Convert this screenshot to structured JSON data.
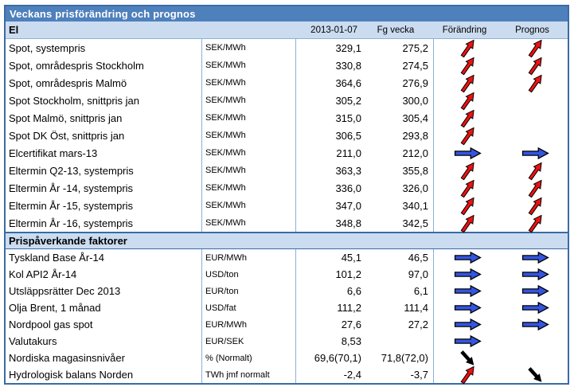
{
  "title": "Veckans prisförändring och prognos",
  "colors": {
    "title_bg": "#4E80BC",
    "section_bg": "#CBDCF0",
    "border_strong": "#3A6BA5",
    "border_light": "#8FAFD6",
    "arrow_red": "#EE1111",
    "arrow_blue": "#3355E0",
    "arrow_black": "#000000"
  },
  "icons": {
    "up": "red-up-arrow-icon",
    "right": "blue-right-arrow-icon",
    "down": "black-down-arrow-icon"
  },
  "table": {
    "col_headers": [
      "2013-01-07",
      "Fg vecka",
      "Förändring",
      "Prognos"
    ],
    "sections": [
      {
        "label": "El",
        "show_col_headers": true,
        "rows": [
          {
            "name": "Spot, systempris",
            "unit": "SEK/MWh",
            "current": "329,1",
            "prev": "275,2",
            "change": "up",
            "forecast": "up"
          },
          {
            "name": "Spot, områdespris Stockholm",
            "unit": "SEK/MWh",
            "current": "330,8",
            "prev": "274,5",
            "change": "up",
            "forecast": "up"
          },
          {
            "name": "Spot, områdespris Malmö",
            "unit": "SEK/MWh",
            "current": "364,6",
            "prev": "276,9",
            "change": "up",
            "forecast": "up"
          },
          {
            "name": "Spot Stockholm, snittpris jan",
            "unit": "SEK/MWh",
            "current": "305,2",
            "prev": "300,0",
            "change": "up",
            "forecast": ""
          },
          {
            "name": "Spot Malmö, snittpris jan",
            "unit": "SEK/MWh",
            "current": "315,0",
            "prev": "305,4",
            "change": "up",
            "forecast": ""
          },
          {
            "name": "Spot DK Öst, snittpris jan",
            "unit": "SEK/MWh",
            "current": "306,5",
            "prev": "293,8",
            "change": "up",
            "forecast": ""
          },
          {
            "name": "Elcertifikat mars-13",
            "unit": "SEK/MWh",
            "current": "211,0",
            "prev": "212,0",
            "change": "right",
            "forecast": "right"
          },
          {
            "name": "Eltermin Q2-13, systempris",
            "unit": "SEK/MWh",
            "current": "363,3",
            "prev": "355,8",
            "change": "up",
            "forecast": "up"
          },
          {
            "name": "Eltermin År -14, systempris",
            "unit": "SEK/MWh",
            "current": "336,0",
            "prev": "326,0",
            "change": "up",
            "forecast": "up"
          },
          {
            "name": "Eltermin År -15, systempris",
            "unit": "SEK/MWh",
            "current": "347,0",
            "prev": "340,1",
            "change": "up",
            "forecast": "up"
          },
          {
            "name": "Eltermin År -16, systempris",
            "unit": "SEK/MWh",
            "current": "348,8",
            "prev": "342,5",
            "change": "up",
            "forecast": "up"
          }
        ]
      },
      {
        "label": "Prispåverkande faktorer",
        "show_col_headers": false,
        "rows": [
          {
            "name": "Tyskland Base År-14",
            "unit": "EUR/MWh",
            "current": "45,1",
            "prev": "46,5",
            "change": "right",
            "forecast": "right"
          },
          {
            "name": "Kol API2 År-14",
            "unit": "USD/ton",
            "current": "101,2",
            "prev": "97,0",
            "change": "right",
            "forecast": "right"
          },
          {
            "name": "Utsläppsrätter Dec 2013",
            "unit": "EUR/ton",
            "current": "6,6",
            "prev": "6,1",
            "change": "right",
            "forecast": "right"
          },
          {
            "name": "Olja Brent, 1 månad",
            "unit": "USD/fat",
            "current": "111,2",
            "prev": "111,4",
            "change": "right",
            "forecast": "right"
          },
          {
            "name": "Nordpool gas spot",
            "unit": "EUR/MWh",
            "current": "27,6",
            "prev": "27,2",
            "change": "right",
            "forecast": "right"
          },
          {
            "name": "Valutakurs",
            "unit": "EUR/SEK",
            "current": "8,53",
            "prev": "",
            "change": "right",
            "forecast": ""
          },
          {
            "name": "Nordiska magasinsnivåer",
            "unit": "% (Normalt)",
            "current": "69,6(70,1)",
            "prev": "71,8(72,0)",
            "change": "down",
            "forecast": ""
          },
          {
            "name": "Hydrologisk balans Norden",
            "unit": "TWh jmf normalt",
            "current": "-2,4",
            "prev": "-3,7",
            "change": "up",
            "forecast": "down"
          }
        ]
      }
    ]
  }
}
